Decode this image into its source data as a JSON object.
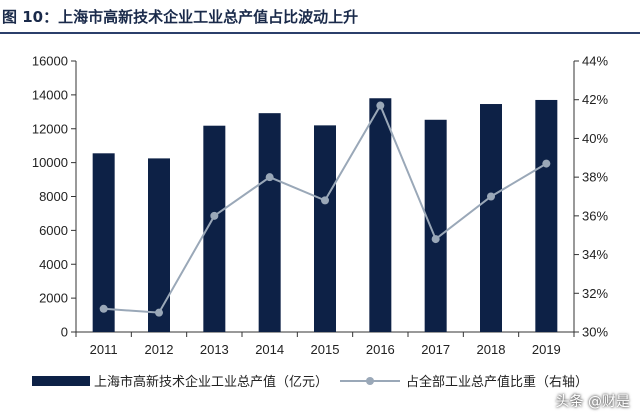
{
  "figure": {
    "title": "图 10：上海市高新技术企业工业总产值占比波动上升",
    "watermark": "头条 @财是"
  },
  "colors": {
    "bar": "#0d2146",
    "line": "#9aa8b8",
    "axis": "#333333",
    "rule": "#2b3f6b"
  },
  "chart_data": {
    "type": "bar",
    "categories": [
      "2011",
      "2012",
      "2013",
      "2014",
      "2015",
      "2016",
      "2017",
      "2018",
      "2019"
    ],
    "series": [
      {
        "name": "上海市高新技术企业工业总产值（亿元）",
        "type": "bar",
        "axis": "left",
        "values": [
          10550,
          10250,
          12180,
          12920,
          12200,
          13800,
          12530,
          13460,
          13700
        ]
      },
      {
        "name": "占全部工业总产值比重（右轴）",
        "type": "line",
        "axis": "right",
        "values": [
          31.2,
          31.0,
          36.0,
          38.0,
          36.8,
          41.7,
          34.8,
          37.0,
          38.7
        ]
      }
    ],
    "y_left": {
      "range": [
        0,
        16000
      ],
      "ticks": [
        "0",
        "2000",
        "4000",
        "6000",
        "8000",
        "10000",
        "12000",
        "14000",
        "16000"
      ]
    },
    "y_right": {
      "range": [
        30,
        44
      ],
      "ticks": [
        "30%",
        "32%",
        "34%",
        "36%",
        "38%",
        "40%",
        "42%",
        "44%"
      ]
    },
    "grid": false,
    "legend_position": "bottom"
  }
}
